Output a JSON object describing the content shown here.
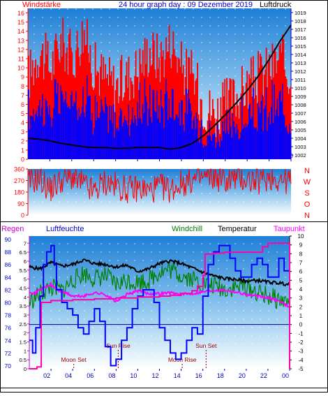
{
  "chart_data": [
    {
      "type": "bar",
      "title": "24 hour graph day : 09 Dezember 2019",
      "left_label": "Windstärke",
      "right_label": "Luftdruck",
      "x_ticks": [
        "02",
        "04",
        "06",
        "08",
        "10",
        "12",
        "14",
        "16",
        "18",
        "20",
        "22",
        "00"
      ],
      "x_range": [
        0,
        24
      ],
      "wind_ticks": [
        "0",
        "1",
        "2",
        "3",
        "4",
        "5",
        "6",
        "7",
        "8",
        "9",
        "10",
        "11",
        "12",
        "13",
        "14",
        "15",
        "16"
      ],
      "wind_range": [
        0,
        16.5
      ],
      "pressure_ticks": [
        "1002",
        "1003",
        "1004",
        "1005",
        "1006",
        "1007",
        "1008",
        "1009",
        "1010",
        "1011",
        "1012",
        "1013",
        "1014",
        "1015",
        "1016",
        "1017",
        "1018",
        "1019"
      ],
      "pressure_range": [
        1001.5,
        1019.5
      ],
      "series": [
        {
          "name": "Windstärke",
          "color": "#ff0000",
          "x": [
            0,
            1,
            2,
            3,
            4,
            5,
            6,
            7,
            8,
            9,
            10,
            11,
            12,
            13,
            14,
            15,
            16,
            17,
            18,
            19,
            20,
            21,
            22,
            23,
            24
          ],
          "values": [
            9,
            12,
            10,
            13,
            11,
            14,
            10,
            9,
            8,
            9,
            10,
            12,
            11,
            13,
            10,
            9,
            6,
            5,
            6,
            7,
            8,
            9,
            10,
            11,
            9
          ]
        },
        {
          "name": "Luftdruck",
          "color": "#000000",
          "x": [
            0,
            1,
            2,
            3,
            4,
            5,
            6,
            7,
            8,
            9,
            10,
            11,
            12,
            13,
            14,
            15,
            16,
            17,
            18,
            19,
            20,
            21,
            22,
            23,
            24
          ],
          "values": [
            1004.0,
            1003.9,
            1003.7,
            1003.4,
            1003.2,
            1003.0,
            1002.9,
            1002.9,
            1002.8,
            1002.8,
            1002.9,
            1002.9,
            1002.9,
            1002.7,
            1002.9,
            1003.4,
            1004.3,
            1005.5,
            1006.8,
            1008.2,
            1009.7,
            1011.4,
            1013.4,
            1015.6,
            1017.5
          ]
        }
      ]
    },
    {
      "type": "line",
      "y_ticks": [
        "0",
        "90",
        "180",
        "270",
        "360"
      ],
      "y_range": [
        0,
        360
      ],
      "right_labels": [
        "N",
        "W",
        "S",
        "O",
        "N"
      ],
      "series": [
        {
          "name": "Windrichtung",
          "color": "#ff0000",
          "x": [
            0,
            1,
            2,
            3,
            4,
            5,
            6,
            7,
            8,
            9,
            10,
            11,
            12,
            13,
            14,
            15,
            16,
            17,
            18,
            19,
            20,
            21,
            22,
            23,
            24
          ],
          "values": [
            250,
            290,
            200,
            270,
            300,
            240,
            180,
            260,
            230,
            200,
            210,
            190,
            220,
            200,
            250,
            270,
            290,
            300,
            270,
            290,
            280,
            260,
            300,
            280,
            260
          ]
        }
      ]
    },
    {
      "type": "line",
      "headers": {
        "regen": "Regen",
        "feuchte": "Luftfeuchte",
        "windchill": "Windchill",
        "temperatur": "Temperatur",
        "taupunkt": "Taupunkt"
      },
      "x_ticks": [
        "02",
        "04",
        "06",
        "08",
        "10",
        "12",
        "14",
        "16",
        "18",
        "20",
        "22",
        "00"
      ],
      "x_range": [
        0,
        24
      ],
      "humidity_ticks": [
        "70",
        "72",
        "74",
        "76",
        "78",
        "80",
        "82",
        "84",
        "86",
        "88",
        "90"
      ],
      "humidity_range": [
        69.5,
        90.5
      ],
      "rain_ticks": [
        "0",
        "0.5",
        "1",
        "1.5",
        "2",
        "2.5",
        "3",
        "3.5",
        "4",
        "4.5",
        "5",
        "5.5",
        "6",
        "6.5",
        "7"
      ],
      "rain_range": [
        0,
        7.4
      ],
      "temp_ticks": [
        "-5",
        "-4",
        "-3",
        "-2",
        "-1",
        "0",
        "1",
        "2",
        "3",
        "4",
        "5",
        "6",
        "7",
        "8",
        "9",
        "10"
      ],
      "temp_range": [
        -5,
        10
      ],
      "annotations": [
        {
          "text": "Moon Set",
          "x": 4.1
        },
        {
          "text": "Sun Rise",
          "x": 8.2
        },
        {
          "text": "Moon Rise",
          "x": 14.1
        },
        {
          "text": "Sun Set",
          "x": 16.3
        }
      ],
      "series": [
        {
          "name": "Luftfeuchte",
          "color": "#0000ff",
          "x": [
            0,
            0.3,
            0.6,
            1,
            1.3,
            1.6,
            2,
            2.3,
            2.5,
            3,
            3.5,
            4,
            4.5,
            5,
            5.5,
            6,
            6.5,
            7,
            7.5,
            8,
            8.5,
            9,
            9.5,
            10,
            10.5,
            11,
            11.5,
            12,
            12.5,
            13,
            13.5,
            14,
            14.5,
            15,
            15.5,
            16,
            16.5,
            17,
            17.5,
            18,
            18.5,
            19,
            19.5,
            20,
            20.5,
            21,
            21.5,
            22,
            22.5,
            23,
            23.5,
            24
          ],
          "values": [
            74,
            72,
            76,
            81,
            86,
            88,
            89,
            86,
            82,
            80,
            79,
            78,
            76,
            75,
            77,
            79,
            77,
            73,
            70,
            71,
            74,
            76,
            79,
            81,
            82,
            82,
            80,
            76,
            74,
            72,
            71,
            72,
            74,
            76,
            75,
            81,
            86,
            88,
            89,
            89,
            87,
            85,
            84,
            84,
            86,
            87,
            86,
            84,
            84,
            87,
            85,
            74
          ]
        },
        {
          "name": "Temperatur",
          "color": "#000000",
          "x": [
            0,
            1,
            2,
            3,
            4,
            5,
            6,
            7,
            8,
            9,
            10,
            11,
            12,
            13,
            14,
            15,
            16,
            17,
            18,
            19,
            20,
            21,
            22,
            23,
            24
          ],
          "values": [
            6.5,
            6.3,
            7.0,
            6.6,
            6.8,
            7.3,
            6.9,
            6.8,
            6.5,
            6.7,
            6.0,
            6.3,
            6.9,
            7.2,
            6.9,
            6.4,
            5.9,
            5.5,
            5.2,
            5.1,
            4.9,
            5.0,
            4.8,
            4.7,
            4.5
          ]
        },
        {
          "name": "Windchill",
          "color": "#008000",
          "x": [
            0,
            1,
            2,
            3,
            4,
            5,
            6,
            7,
            8,
            9,
            10,
            11,
            12,
            13,
            14,
            15,
            16,
            17,
            18,
            19,
            20,
            21,
            22,
            23,
            24
          ],
          "values": [
            2.5,
            3.5,
            4.2,
            3.8,
            5.0,
            5.8,
            5.2,
            5.5,
            4.5,
            5.0,
            4.8,
            5.0,
            6.0,
            6.2,
            5.6,
            5.2,
            4.6,
            4.4,
            4.0,
            4.2,
            4.3,
            3.6,
            3.2,
            2.8,
            2.5
          ]
        },
        {
          "name": "Taupunkt",
          "color": "#ff00ff",
          "x": [
            0,
            0.5,
            1,
            1.5,
            2,
            2.5,
            3,
            3.5,
            4,
            5,
            6,
            7,
            7.5,
            8,
            9,
            10,
            11,
            12,
            13,
            14,
            15,
            16,
            17,
            18,
            19,
            20,
            21,
            22,
            23,
            24
          ],
          "values": [
            3.8,
            3.5,
            4.0,
            4.2,
            4.5,
            4.0,
            3.7,
            3.5,
            3.2,
            3.2,
            3.6,
            3.4,
            3.0,
            2.6,
            3.4,
            3.8,
            3.5,
            3.5,
            3.6,
            3.4,
            3.5,
            3.7,
            3.9,
            3.9,
            3.7,
            3.4,
            3.2,
            3.0,
            2.7,
            2.0
          ]
        },
        {
          "name": "Regen",
          "color": "#ff00aa",
          "x": [
            0,
            0.7,
            1.1,
            2,
            4,
            6,
            8,
            10,
            12,
            13,
            14,
            15,
            15.5,
            16,
            16.2,
            17,
            18,
            19,
            20,
            21,
            21.5,
            22,
            23,
            24
          ],
          "values": [
            0,
            0.1,
            3.7,
            3.8,
            3.85,
            3.9,
            3.95,
            4.0,
            4.05,
            4.1,
            4.2,
            4.35,
            4.6,
            5.2,
            6.4,
            6.45,
            6.5,
            6.5,
            6.5,
            6.5,
            6.8,
            7.0,
            7.0,
            0
          ]
        }
      ]
    }
  ]
}
